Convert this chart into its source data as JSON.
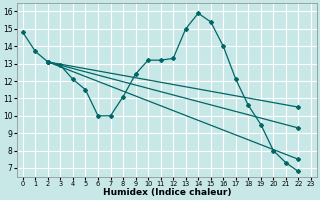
{
  "xlabel": "Humidex (Indice chaleur)",
  "bg_color": "#c8e8e8",
  "grid_color": "#ffffff",
  "line_color": "#006666",
  "xlim": [
    -0.5,
    23.5
  ],
  "ylim": [
    6.5,
    16.5
  ],
  "xticks": [
    0,
    1,
    2,
    3,
    4,
    5,
    6,
    7,
    8,
    9,
    10,
    11,
    12,
    13,
    14,
    15,
    16,
    17,
    18,
    19,
    20,
    21,
    22,
    23
  ],
  "yticks": [
    7,
    8,
    9,
    10,
    11,
    12,
    13,
    14,
    15,
    16
  ],
  "series": [
    {
      "x": [
        0,
        1,
        2,
        3,
        4,
        5,
        6,
        7,
        8,
        9,
        10,
        11,
        12,
        13,
        14,
        15,
        16,
        17,
        18,
        19,
        20,
        21,
        22
      ],
      "y": [
        14.8,
        13.7,
        13.1,
        12.9,
        12.1,
        11.5,
        10.0,
        10.0,
        11.1,
        12.4,
        13.2,
        13.2,
        13.3,
        15.0,
        15.9,
        15.4,
        14.0,
        12.1,
        10.6,
        9.5,
        8.0,
        7.3,
        6.8
      ]
    },
    {
      "x": [
        2,
        22
      ],
      "y": [
        13.1,
        7.5
      ]
    },
    {
      "x": [
        2,
        22
      ],
      "y": [
        13.1,
        9.3
      ]
    },
    {
      "x": [
        2,
        22
      ],
      "y": [
        13.1,
        10.5
      ]
    }
  ]
}
